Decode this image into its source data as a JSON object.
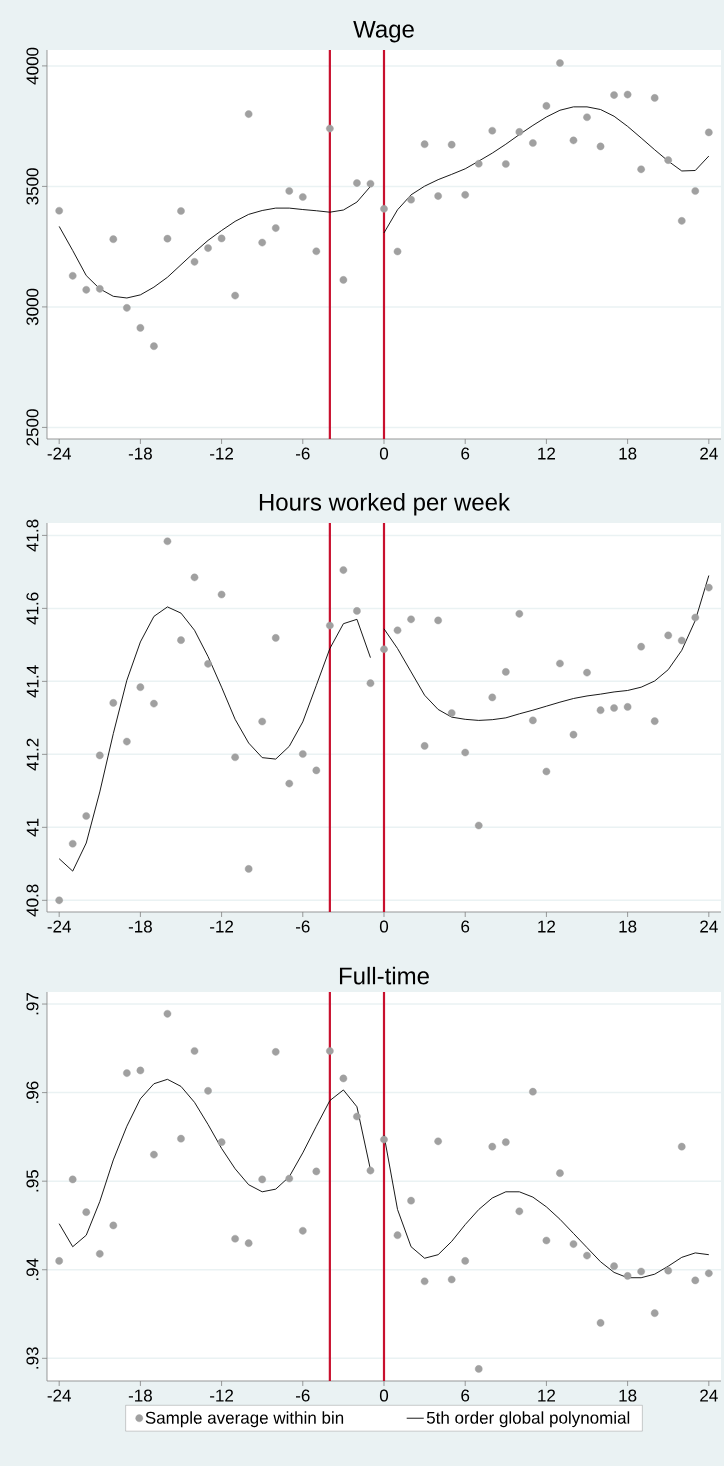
{
  "chart_data": [
    {
      "type": "scatter",
      "title": "Wage",
      "xlim": [
        -24.9,
        24.9
      ],
      "xticks": [
        -24,
        -18,
        -12,
        -6,
        0,
        6,
        12,
        18,
        24
      ],
      "ylim": [
        2452,
        4066
      ],
      "yticks": [
        2500,
        3000,
        3500,
        4000
      ],
      "grid": "y",
      "x": [
        -24,
        -23,
        -22,
        -21,
        -20,
        -19,
        -18,
        -17,
        -16,
        -15,
        -14,
        -13,
        -12,
        -11,
        -10,
        -9,
        -8,
        -7,
        -6,
        -5,
        -4,
        -3,
        -2,
        -1,
        0,
        1,
        2,
        3,
        4,
        5,
        6,
        7,
        8,
        9,
        10,
        11,
        12,
        13,
        14,
        15,
        16,
        17,
        18,
        19,
        20,
        21,
        22,
        23,
        24
      ],
      "series": [
        {
          "marker": "circle",
          "color": "#a0a0a0",
          "values": [
            3399,
            3129,
            3071,
            3075,
            3281,
            2996,
            2913,
            2837,
            3283,
            3398,
            3187,
            3244,
            3284,
            3047,
            3800,
            3267,
            3327,
            3481,
            3456,
            3231,
            3740,
            3112,
            3514,
            3511,
            3407,
            3230,
            3445,
            3675,
            3460,
            3673,
            3465,
            3594,
            3731,
            3593,
            3726,
            3680,
            3834,
            4012,
            3691,
            3787,
            3666,
            3879,
            3881,
            3571,
            3867,
            3609,
            3357,
            3481,
            3724
          ]
        },
        {
          "type": "line",
          "marker": "none",
          "color": "#000000",
          "x": [
            -24,
            -23,
            -22,
            -21,
            -20,
            -19,
            -18,
            -17,
            -16,
            -15,
            -14,
            -13,
            -12,
            -11,
            -10,
            -9,
            -8,
            -7,
            -6,
            -5,
            -4,
            -3,
            -2,
            -1
          ],
          "values": [
            3334,
            3234,
            3130,
            3075,
            3044,
            3037,
            3050,
            3082,
            3123,
            3175,
            3227,
            3276,
            3317,
            3355,
            3384,
            3400,
            3410,
            3410,
            3404,
            3399,
            3393,
            3402,
            3435,
            3500
          ]
        },
        {
          "type": "line",
          "marker": "none",
          "color": "#000000",
          "x": [
            0,
            1,
            2,
            3,
            4,
            5,
            6,
            7,
            8,
            9,
            10,
            11,
            12,
            13,
            14,
            15,
            16,
            17,
            18,
            19,
            20,
            21,
            22,
            23,
            24
          ],
          "values": [
            3307,
            3403,
            3465,
            3501,
            3528,
            3550,
            3573,
            3605,
            3638,
            3675,
            3715,
            3753,
            3788,
            3816,
            3830,
            3830,
            3819,
            3791,
            3749,
            3701,
            3652,
            3605,
            3564,
            3566,
            3626
          ]
        }
      ],
      "ref_lines": [
        {
          "axis": "x",
          "value": -4,
          "color": "#c8102e"
        },
        {
          "axis": "x",
          "value": 0,
          "color": "#c8102e"
        }
      ]
    },
    {
      "type": "scatter",
      "title": "Hours worked per week",
      "xlim": [
        -24.9,
        24.9
      ],
      "xticks": [
        -24,
        -18,
        -12,
        -6,
        0,
        6,
        12,
        18,
        24
      ],
      "ylim": [
        40.768,
        41.834
      ],
      "yticks": [
        40.8,
        41,
        41.2,
        41.4,
        41.6,
        41.8
      ],
      "grid": "y",
      "x": [
        -24,
        -23,
        -22,
        -21,
        -20,
        -19,
        -18,
        -17,
        -16,
        -15,
        -14,
        -13,
        -12,
        -11,
        -10,
        -9,
        -8,
        -7,
        -6,
        -5,
        -4,
        -3,
        -2,
        -1,
        0,
        1,
        2,
        3,
        4,
        5,
        6,
        7,
        8,
        9,
        10,
        11,
        12,
        13,
        14,
        15,
        16,
        17,
        18,
        19,
        20,
        21,
        22,
        23,
        24
      ],
      "series": [
        {
          "marker": "circle",
          "color": "#a0a0a0",
          "values": [
            40.8,
            40.955,
            41.031,
            41.197,
            41.341,
            41.235,
            41.384,
            41.339,
            41.784,
            41.513,
            41.685,
            41.448,
            41.638,
            41.192,
            40.886,
            41.29,
            41.519,
            41.12,
            41.201,
            41.156,
            41.553,
            41.705,
            41.593,
            41.395,
            41.488,
            41.54,
            41.57,
            41.223,
            41.567,
            41.313,
            41.205,
            41.005,
            41.356,
            41.426,
            41.585,
            41.293,
            41.153,
            41.449,
            41.254,
            41.424,
            41.321,
            41.327,
            41.33,
            41.495,
            41.291,
            41.526,
            41.512,
            41.575,
            41.657
          ]
        },
        {
          "type": "line",
          "marker": "none",
          "color": "#000000",
          "x": [
            -24,
            -23,
            -22,
            -21,
            -20,
            -19,
            -18,
            -17,
            -16,
            -15,
            -14,
            -13,
            -12,
            -11,
            -10,
            -9,
            -8,
            -7,
            -6,
            -5,
            -4,
            -3,
            -2,
            -1
          ],
          "values": [
            40.914,
            40.88,
            40.957,
            41.097,
            41.257,
            41.403,
            41.508,
            41.578,
            41.604,
            41.587,
            41.54,
            41.468,
            41.384,
            41.296,
            41.231,
            41.191,
            41.187,
            41.222,
            41.289,
            41.389,
            41.49,
            41.558,
            41.57,
            41.465
          ]
        },
        {
          "type": "line",
          "marker": "none",
          "color": "#000000",
          "x": [
            0,
            1,
            2,
            3,
            4,
            5,
            6,
            7,
            8,
            9,
            10,
            11,
            12,
            13,
            14,
            15,
            16,
            17,
            18,
            19,
            20,
            21,
            22,
            23,
            24
          ],
          "values": [
            41.544,
            41.49,
            41.426,
            41.362,
            41.323,
            41.302,
            41.296,
            41.293,
            41.295,
            41.3,
            41.311,
            41.321,
            41.332,
            41.343,
            41.353,
            41.36,
            41.365,
            41.371,
            41.375,
            41.384,
            41.401,
            41.432,
            41.485,
            41.567,
            41.69
          ]
        }
      ],
      "ref_lines": [
        {
          "axis": "x",
          "value": -4,
          "color": "#c8102e"
        },
        {
          "axis": "x",
          "value": 0,
          "color": "#c8102e"
        }
      ]
    },
    {
      "type": "scatter",
      "title": "Full-time",
      "xlim": [
        -24.9,
        24.9
      ],
      "xticks": [
        -24,
        -18,
        -12,
        -6,
        0,
        6,
        12,
        18,
        24
      ],
      "ylim": [
        0.92744,
        0.97136
      ],
      "yticks": [
        {
          "value": 0.93,
          "label": ".93"
        },
        {
          "value": 0.94,
          "label": ".94"
        },
        {
          "value": 0.95,
          "label": ".95"
        },
        {
          "value": 0.96,
          "label": ".96"
        },
        {
          "value": 0.97,
          "label": ".97"
        }
      ],
      "grid": "y",
      "legend": "bottom",
      "x": [
        -24,
        -23,
        -22,
        -21,
        -20,
        -19,
        -18,
        -17,
        -16,
        -15,
        -14,
        -13,
        -12,
        -11,
        -10,
        -9,
        -8,
        -7,
        -6,
        -5,
        -4,
        -3,
        -2,
        -1,
        0,
        1,
        2,
        3,
        4,
        5,
        6,
        7,
        8,
        9,
        10,
        11,
        12,
        13,
        14,
        15,
        16,
        17,
        18,
        19,
        20,
        21,
        22,
        23,
        24
      ],
      "series": [
        {
          "marker": "circle",
          "name": "Sample average within bin",
          "color": "#a0a0a0",
          "values": [
            0.941,
            0.9502,
            0.9465,
            0.9418,
            0.945,
            0.9622,
            0.9625,
            0.953,
            0.9689,
            0.9548,
            0.9647,
            0.9602,
            0.9544,
            0.9435,
            0.943,
            0.9502,
            0.9646,
            0.9503,
            0.9444,
            0.9511,
            0.9647,
            0.9616,
            0.9573,
            0.9512,
            0.9547,
            0.9439,
            0.9478,
            0.9387,
            0.9545,
            0.9389,
            0.941,
            0.9288,
            0.9539,
            0.9544,
            0.9466,
            0.9601,
            0.9433,
            0.9509,
            0.9429,
            0.9416,
            0.934,
            0.9404,
            0.9393,
            0.9398,
            0.9351,
            0.9399,
            0.9539,
            0.9388,
            0.9396
          ]
        },
        {
          "type": "line",
          "marker": "none",
          "name": "5th order global polynomial",
          "color": "#000000",
          "x": [
            -24,
            -23,
            -22,
            -21,
            -20,
            -19,
            -18,
            -17,
            -16,
            -15,
            -14,
            -13,
            -12,
            -11,
            -10,
            -9,
            -8,
            -7,
            -6,
            -5,
            -4,
            -3,
            -2,
            -1
          ],
          "values": [
            0.9452,
            0.9426,
            0.9439,
            0.9477,
            0.9524,
            0.9562,
            0.9593,
            0.961,
            0.9615,
            0.9607,
            0.9589,
            0.9564,
            0.9537,
            0.9514,
            0.9496,
            0.9488,
            0.9491,
            0.9505,
            0.9532,
            0.9562,
            0.9591,
            0.9603,
            0.9584,
            0.9513
          ]
        },
        {
          "type": "line",
          "marker": "none",
          "color": "#000000",
          "x": [
            0,
            1,
            2,
            3,
            4,
            5,
            6,
            7,
            8,
            9,
            10,
            11,
            12,
            13,
            14,
            15,
            16,
            17,
            18,
            19,
            20,
            21,
            22,
            23,
            24
          ],
          "values": [
            0.9552,
            0.9468,
            0.9426,
            0.9413,
            0.9417,
            0.9432,
            0.9451,
            0.9468,
            0.9481,
            0.9488,
            0.9488,
            0.9482,
            0.9471,
            0.9457,
            0.9441,
            0.9425,
            0.9409,
            0.9397,
            0.9391,
            0.9391,
            0.9395,
            0.9404,
            0.9414,
            0.9419,
            0.9417
          ]
        }
      ],
      "ref_lines": [
        {
          "axis": "x",
          "value": -4,
          "color": "#c8102e"
        },
        {
          "axis": "x",
          "value": 0,
          "color": "#c8102e"
        }
      ]
    }
  ]
}
